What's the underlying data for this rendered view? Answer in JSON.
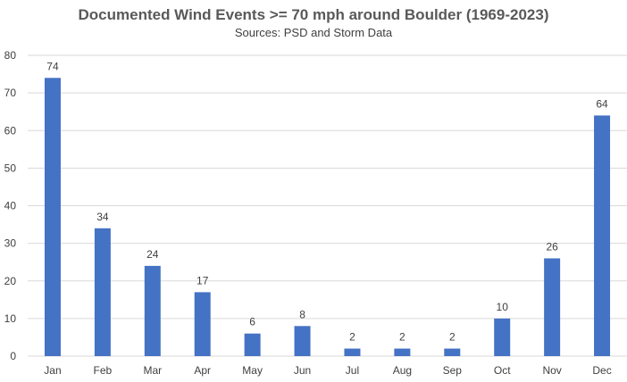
{
  "chart_data": {
    "type": "bar",
    "title": "Documented Wind Events >= 70 mph around Boulder (1969-2023)",
    "subtitle": "Sources: PSD and Storm Data",
    "xlabel": "",
    "ylabel": "",
    "categories": [
      "Jan",
      "Feb",
      "Mar",
      "Apr",
      "May",
      "Jun",
      "Jul",
      "Aug",
      "Sep",
      "Oct",
      "Nov",
      "Dec"
    ],
    "values": [
      74,
      34,
      24,
      17,
      6,
      8,
      2,
      2,
      2,
      10,
      26,
      64
    ],
    "ylim": [
      0,
      80
    ],
    "yticks": [
      0,
      10,
      20,
      30,
      40,
      50,
      60,
      70,
      80
    ],
    "grid": true,
    "legend": "none",
    "data_labels": true,
    "bar_color": "#4472C4",
    "grid_color": "#D9D9D9",
    "text_color": "#404040"
  }
}
